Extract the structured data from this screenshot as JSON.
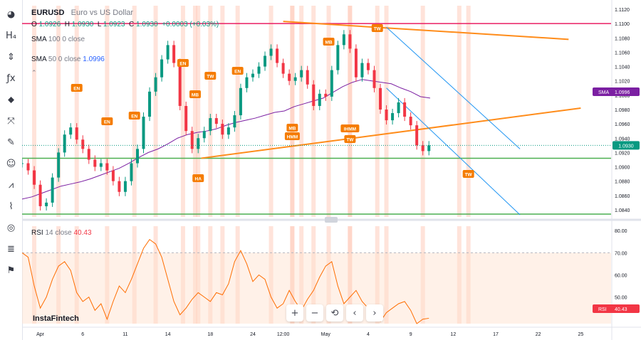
{
  "symbol": {
    "ticker": "EURUSD",
    "description": "Euro vs US Dollar"
  },
  "ohlc": {
    "o_label": "O",
    "o": "1.0926",
    "h_label": "H",
    "h": "1.0930",
    "l_label": "L",
    "l": "1.0923",
    "c_label": "C",
    "c": "1.0930",
    "change": "+0.0003 (+0.03%)"
  },
  "indicators": {
    "sma100": {
      "name": "SMA",
      "params": "100 0 close"
    },
    "sma50": {
      "name": "SMA",
      "params": "50 0 close",
      "value": "1.0996"
    },
    "rsi": {
      "name": "RSI",
      "params": "14 close",
      "value": "40.43"
    }
  },
  "price_badges": {
    "current": "1.0930",
    "sma_label": "SMA",
    "sma_value": "1.0996",
    "rsi_label": "RSI",
    "rsi_value": "40.43"
  },
  "brand": "InstaFintech",
  "colors": {
    "up": "#089981",
    "down": "#f23645",
    "sma": "#7b1fa2",
    "rsi": "#ff6d00",
    "trend": "#ff8c1a",
    "channel": "#2196f3",
    "support": "#4caf50",
    "resistance": "#e91e63",
    "highlight": "#ffccbc"
  },
  "toolbar_icons": [
    "logo-icon",
    "heading-icon",
    "long-position-icon",
    "fx-icon",
    "node-icon",
    "pitchfork-icon",
    "brush-icon",
    "emoji-icon",
    "pattern-icon",
    "ruler-icon",
    "eye-icon",
    "all-icon",
    "alert-icon"
  ],
  "nav_buttons": [
    {
      "name": "zoom-in-button",
      "glyph": "+"
    },
    {
      "name": "zoom-out-button",
      "glyph": "−"
    },
    {
      "name": "reset-button",
      "glyph": "⟲"
    },
    {
      "name": "scroll-left-button",
      "glyph": "‹"
    },
    {
      "name": "scroll-right-button",
      "glyph": "›"
    }
  ],
  "chart_data": {
    "type": "candlestick",
    "price_axis": {
      "ticks": [
        1.084,
        1.086,
        1.088,
        1.09,
        1.092,
        1.094,
        1.096,
        1.098,
        1.1,
        1.102,
        1.104,
        1.106,
        1.108,
        1.11,
        1.112
      ],
      "range": [
        1.083,
        1.1125
      ]
    },
    "rsi_axis": {
      "ticks": [
        50,
        60,
        70,
        80
      ],
      "range": [
        38,
        82
      ],
      "overbought": 70
    },
    "time_axis": {
      "labels": [
        {
          "t": 3,
          "text": "Apr"
        },
        {
          "t": 10,
          "text": "6"
        },
        {
          "t": 17,
          "text": "11"
        },
        {
          "t": 24,
          "text": "14"
        },
        {
          "t": 31,
          "text": "18"
        },
        {
          "t": 38,
          "text": "24"
        },
        {
          "t": 43,
          "text": "12:00"
        },
        {
          "t": 50,
          "text": "May"
        },
        {
          "t": 57,
          "text": "4"
        },
        {
          "t": 64,
          "text": "9"
        },
        {
          "t": 71,
          "text": "12"
        },
        {
          "t": 78,
          "text": "17"
        },
        {
          "t": 85,
          "text": "22"
        },
        {
          "t": 92,
          "text": "25"
        }
      ],
      "range": [
        0,
        97
      ]
    },
    "closes": [
      1.0905,
      1.0895,
      1.0875,
      1.0845,
      1.085,
      1.0885,
      1.092,
      1.0945,
      1.0955,
      1.0938,
      1.0925,
      1.091,
      1.09,
      1.0905,
      1.0895,
      1.088,
      1.0865,
      1.088,
      1.0905,
      1.0925,
      1.097,
      1.1005,
      1.1025,
      1.105,
      1.107,
      1.1045,
      1.0985,
      1.095,
      1.0925,
      1.094,
      1.095,
      1.0968,
      1.096,
      1.0945,
      1.0955,
      1.0972,
      1.101,
      1.1025,
      1.103,
      1.104,
      1.1055,
      1.1065,
      1.1045,
      1.103,
      1.102,
      1.1025,
      1.1035,
      1.1015,
      1.0985,
      1.1002,
      1.0998,
      1.1035,
      1.107,
      1.1085,
      1.1065,
      1.1025,
      1.1045,
      1.1035,
      1.101,
      1.098,
      1.0965,
      1.0975,
      1.099,
      1.097,
      1.0958,
      1.093,
      1.0922,
      1.093
    ],
    "sma50": [
      1.0855,
      1.0858,
      1.0863,
      1.0868,
      1.0873,
      1.0876,
      1.0879,
      1.0883,
      1.0888,
      1.0893,
      1.0898,
      1.0905,
      1.0913,
      1.092,
      1.0925,
      1.0932,
      1.094,
      1.0945,
      1.0948,
      1.095,
      1.0953,
      1.0958,
      1.0962,
      1.0965,
      1.0968,
      1.0972,
      1.0976,
      1.0978,
      1.0984,
      1.0988,
      1.0992,
      1.0996,
      1.1004,
      1.1012,
      1.1018,
      1.1022,
      1.102,
      1.1018,
      1.1016,
      1.101,
      1.1005,
      1.0998,
      1.0996
    ],
    "rsi": [
      70,
      68,
      55,
      45,
      50,
      58,
      64,
      66,
      62,
      52,
      48,
      50,
      44,
      47,
      40,
      48,
      55,
      52,
      58,
      65,
      72,
      76,
      74,
      68,
      58,
      48,
      42,
      45,
      49,
      52,
      50,
      48,
      52,
      51,
      56,
      66,
      71,
      65,
      57,
      60,
      58,
      50,
      45,
      47,
      53,
      48,
      44,
      49,
      53,
      59,
      64,
      66,
      55,
      47,
      50,
      53,
      48,
      45,
      42,
      39,
      43,
      45,
      47,
      48,
      44,
      38,
      40,
      40.43
    ],
    "annotations": [
      {
        "t": 9,
        "label": "EN"
      },
      {
        "t": 14,
        "label": "EN"
      },
      {
        "t": 18.5,
        "label": "EN"
      },
      {
        "t": 26.5,
        "label": "EN"
      },
      {
        "t": 28.5,
        "label": "MB"
      },
      {
        "t": 31,
        "label": "TW"
      },
      {
        "t": 35.5,
        "label": "EN"
      },
      {
        "t": 50.5,
        "label": "MB"
      },
      {
        "t": 58.5,
        "label": "TW"
      },
      {
        "t": 29,
        "label": "HA"
      },
      {
        "t": 44.5,
        "label": "MB"
      },
      {
        "t": 44.5,
        "label": "HMM"
      },
      {
        "t": 54,
        "label": "IHMM"
      },
      {
        "t": 54,
        "label": "TW"
      },
      {
        "t": 73.5,
        "label": "TW"
      }
    ],
    "support_levels": [
      1.0912,
      1.0834
    ],
    "resistance_level": 1.11
  }
}
